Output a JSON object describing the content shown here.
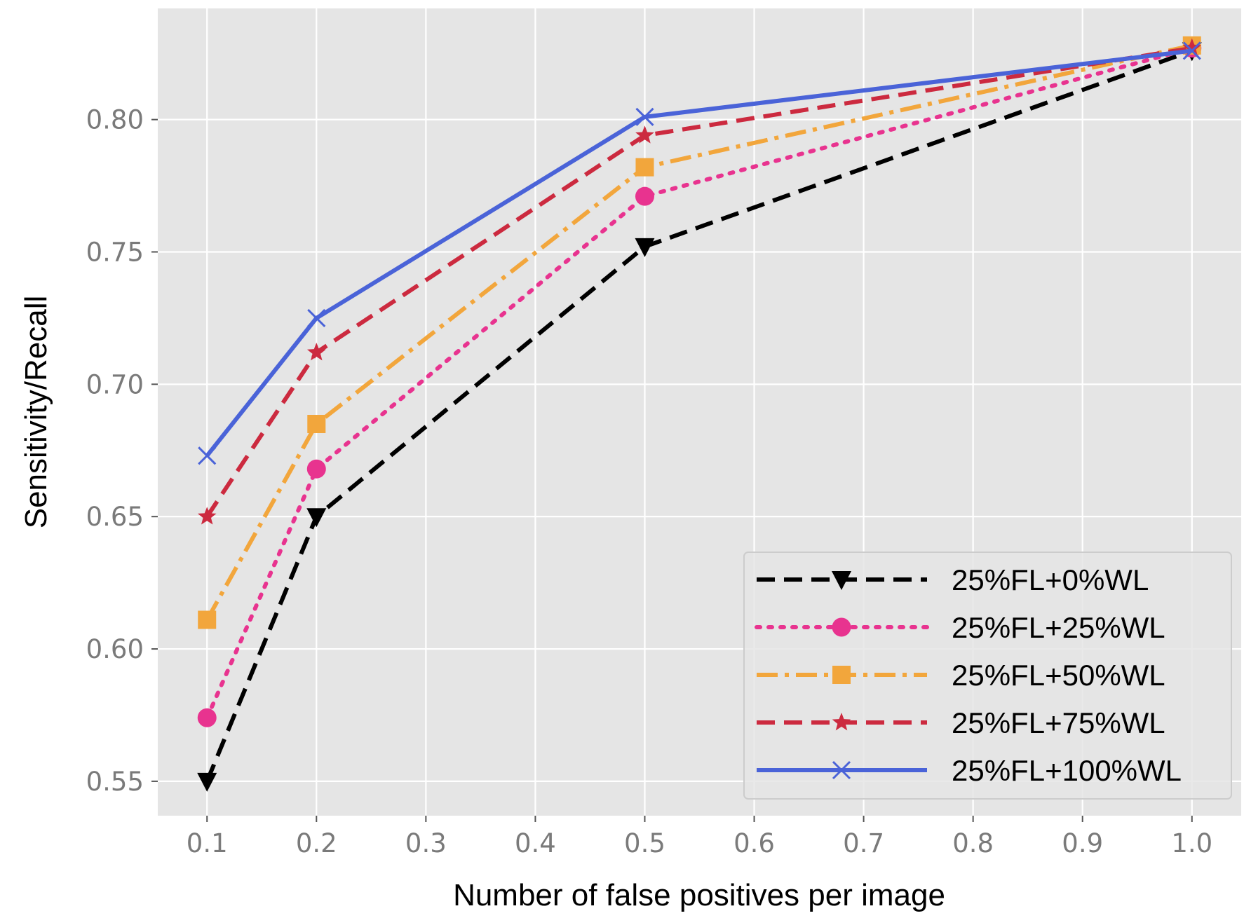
{
  "chart_data": {
    "type": "line",
    "title": "",
    "xlabel": "Number of false positives per image",
    "ylabel": "Sensitivity/Recall",
    "xlim": [
      0.055,
      1.045
    ],
    "ylim": [
      0.537,
      0.842
    ],
    "xticks": [
      0.1,
      0.2,
      0.3,
      0.4,
      0.5,
      0.6,
      0.7,
      0.8,
      0.9,
      1.0
    ],
    "xtick_labels": [
      "0.1",
      "0.2",
      "0.3",
      "0.4",
      "0.5",
      "0.6",
      "0.7",
      "0.8",
      "0.9",
      "1.0"
    ],
    "yticks": [
      0.55,
      0.6,
      0.65,
      0.7,
      0.75,
      0.8
    ],
    "ytick_labels": [
      "0.55",
      "0.60",
      "0.65",
      "0.70",
      "0.75",
      "0.80"
    ],
    "grid": true,
    "legend_position": "bottom-right",
    "x": [
      0.1,
      0.2,
      0.5,
      1.0
    ],
    "series": [
      {
        "name": "25%FL+0%WL",
        "values": [
          0.55,
          0.65,
          0.752,
          0.826
        ],
        "color": "#000000",
        "dash": "dashed",
        "marker": "triangle-down"
      },
      {
        "name": "25%FL+25%WL",
        "values": [
          0.574,
          0.668,
          0.771,
          0.827
        ],
        "color": "#e8338f",
        "dash": "dotted",
        "marker": "circle"
      },
      {
        "name": "25%FL+50%WL",
        "values": [
          0.611,
          0.685,
          0.782,
          0.828
        ],
        "color": "#f2a63c",
        "dash": "dashdot",
        "marker": "square"
      },
      {
        "name": "25%FL+75%WL",
        "values": [
          0.65,
          0.712,
          0.794,
          0.827
        ],
        "color": "#cc2a3f",
        "dash": "dashed",
        "marker": "star"
      },
      {
        "name": "25%FL+100%WL",
        "values": [
          0.673,
          0.725,
          0.801,
          0.826
        ],
        "color": "#4a63d8",
        "dash": "solid",
        "marker": "x"
      }
    ]
  }
}
